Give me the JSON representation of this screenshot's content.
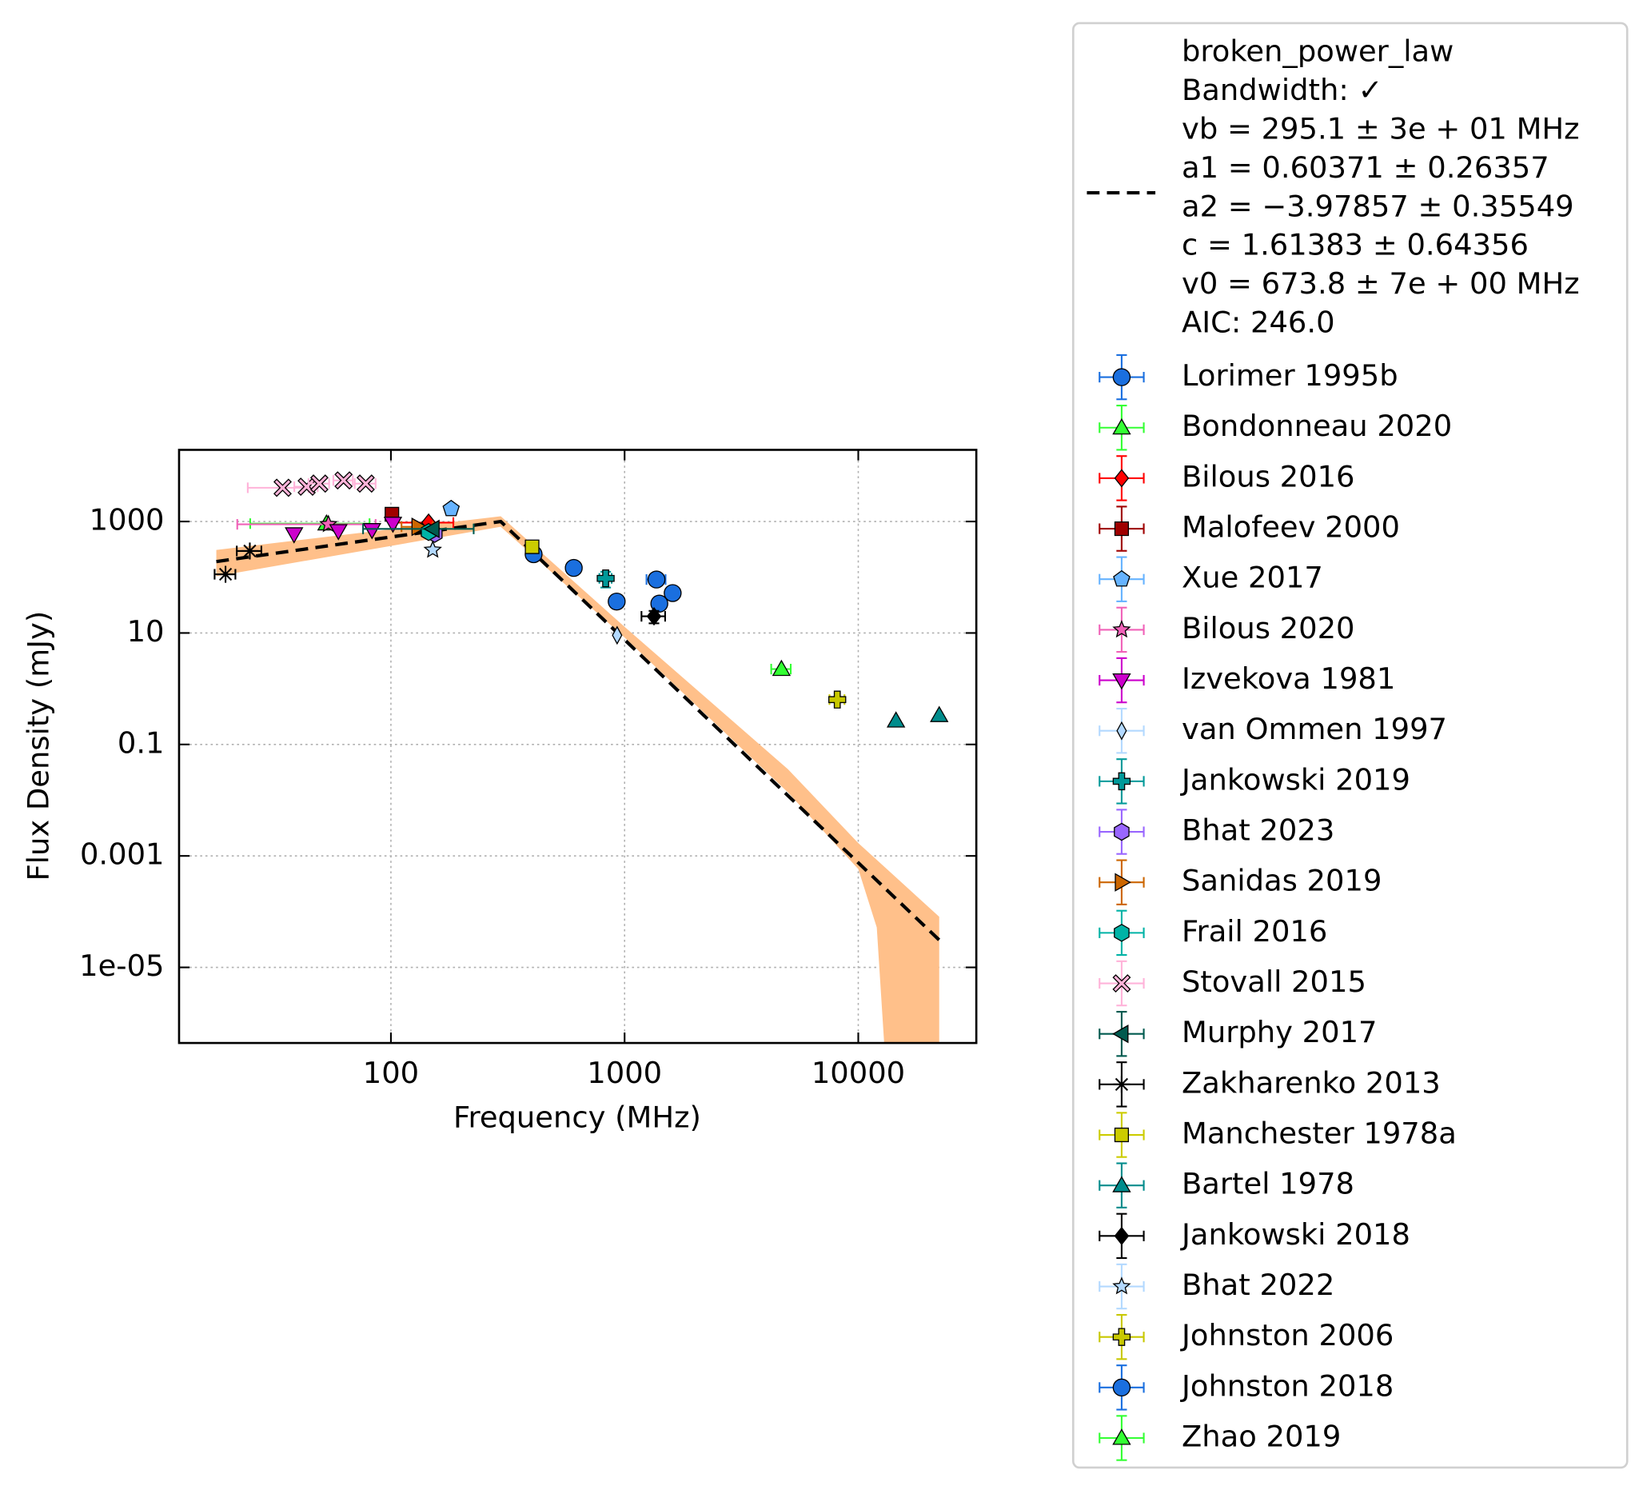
{
  "chart_data": {
    "type": "scatter",
    "xlabel": "Frequency (MHz)",
    "ylabel": "Flux Density (mJy)",
    "xscale": "log",
    "yscale": "log",
    "grid": true,
    "legend": "outside right",
    "xlim": [
      12.4,
      32000
    ],
    "ylim": [
      4.4e-07,
      19300
    ],
    "xticks": [
      100,
      1000,
      10000
    ],
    "yticks": [
      1000,
      10,
      0.1,
      0.001,
      {
        "value": 1e-05,
        "label": "1e-05"
      }
    ],
    "fit": {
      "label_lines": [
        "broken_power_law",
        "Bandwidth: ✓",
        "vb = 295.1 ± 3e + 01 MHz",
        "a1 = 0.60371 ± 0.26357",
        "a2 = −3.97857 ± 0.35549",
        "c = 1.61383 ± 0.64356",
        "v0 = 673.8 ± 7e + 00 MHz",
        "AIC: 246.0"
      ],
      "color": "#000000",
      "x": [
        17.9,
        295.1,
        22200
      ],
      "values": [
        191,
        1000,
        3.1e-05
      ],
      "band": {
        "color": "#ffc08a",
        "x": [
          17.9,
          295.1,
          1000,
          5000,
          10000,
          12000,
          13200,
          22200
        ],
        "upper": [
          309,
          1240,
          12.9,
          0.036,
          0.0017,
          0.00085,
          0.00059,
          8.1e-05
        ],
        "lower": [
          104,
          804,
          8.3,
          0.0138,
          0.00058,
          5.2e-05,
          1e-07,
          1e-07
        ]
      }
    },
    "series": [
      {
        "name": "Lorimer 1995b",
        "color": "#1a6fdf",
        "marker": "circle",
        "x": [
          408,
          606,
          925,
          1408,
          1606
        ],
        "values": [
          259,
          147,
          36.6,
          33.6,
          52
        ]
      },
      {
        "name": "Bondonneau 2020",
        "color": "#33ff33",
        "marker": "triangle-up",
        "x": [
          53
        ],
        "values": [
          917
        ],
        "xerr": [
          28
        ]
      },
      {
        "name": "Bilous 2016",
        "color": "#ff0000",
        "marker": "diamond",
        "x": [
          145
        ],
        "values": [
          957
        ],
        "xerr": [
          40
        ]
      },
      {
        "name": "Malofeev 2000",
        "color": "#a00000",
        "marker": "square",
        "x": [
          101
        ],
        "values": [
          1356
        ]
      },
      {
        "name": "Xue 2017",
        "color": "#66b3ff",
        "marker": "pentagon",
        "x": [
          181
        ],
        "values": [
          1686
        ]
      },
      {
        "name": "Bilous 2020",
        "color": "#f062b8",
        "marker": "star",
        "x": [
          54
        ],
        "values": [
          890
        ],
        "xerr": [
          32
        ]
      },
      {
        "name": "Izvekova 1981",
        "color": "#cc00cc",
        "marker": "triangle-down",
        "x": [
          38.5,
          59.6,
          83,
          102
        ],
        "values": [
          593,
          676,
          706,
          917
        ]
      },
      {
        "name": "van Ommen 1997",
        "color": "#b3d9ff",
        "marker": "thin-diamond",
        "x": [
          929
        ],
        "values": [
          9.1
        ]
      },
      {
        "name": "Jankowski 2019",
        "color": "#009999",
        "marker": "plus",
        "x": [
          830
        ],
        "values": [
          95.4
        ],
        "xerr": [
          50
        ],
        "yerr": [
          30
        ]
      },
      {
        "name": "Bhat 2023",
        "color": "#9966ff",
        "marker": "hexagon",
        "x": [
          154
        ],
        "values": [
          600
        ]
      },
      {
        "name": "Sanidas 2019",
        "color": "#cc6600",
        "marker": "triangle-right",
        "x": [
          131
        ],
        "values": [
          804
        ],
        "xerr": [
          20
        ]
      },
      {
        "name": "Frail 2016",
        "color": "#00b3a6",
        "marker": "hexagon",
        "x": [
          145
        ],
        "values": [
          647
        ]
      },
      {
        "name": "Stovall 2015",
        "color": "#ffb3d9",
        "marker": "x",
        "x": [
          34.4,
          43.6,
          49.4,
          62.7,
          78
        ],
        "values": [
          4030,
          4210,
          4790,
          5460,
          4790
        ],
        "xerr": [
          10,
          5,
          5,
          6,
          8
        ]
      },
      {
        "name": "Murphy 2017",
        "color": "#005a4f",
        "marker": "triangle-left",
        "x": [
          151
        ],
        "values": [
          737
        ],
        "xerr": [
          75
        ]
      },
      {
        "name": "Zakharenko 2013",
        "color": "#000000",
        "marker": "asterisk",
        "x": [
          19.6,
          24.9
        ],
        "values": [
          113,
          296
        ],
        "xerr": [
          2,
          3
        ]
      },
      {
        "name": "Manchester 1978a",
        "color": "#cccc00",
        "marker": "square",
        "x": [
          402
        ],
        "values": [
          352
        ]
      },
      {
        "name": "Bartel 1978",
        "color": "#008c8c",
        "marker": "triangle-up",
        "x": [
          14500,
          22200
        ],
        "values": [
          0.267,
          0.334
        ]
      },
      {
        "name": "Jankowski 2018",
        "color": "#000000",
        "marker": "diamond",
        "x": [
          1336
        ],
        "values": [
          19.9
        ],
        "xerr": [
          155
        ],
        "yerr": [
          5
        ]
      },
      {
        "name": "Bhat 2022",
        "color": "#b3d9ff",
        "marker": "star",
        "x": [
          151
        ],
        "values": [
          309
        ]
      },
      {
        "name": "Johnston 2006",
        "color": "#c8c800",
        "marker": "plus",
        "x": [
          8130
        ],
        "values": [
          0.638
        ],
        "xerr": [
          600
        ]
      },
      {
        "name": "Johnston 2018",
        "color": "#1a6fdf",
        "marker": "circle",
        "x": [
          1369
        ],
        "values": [
          91
        ],
        "xerr": [
          128
        ]
      },
      {
        "name": "Zhao 2019",
        "color": "#33ff33",
        "marker": "triangle-up",
        "x": [
          4690
        ],
        "values": [
          2.25
        ],
        "xerr": [
          450
        ]
      }
    ]
  }
}
